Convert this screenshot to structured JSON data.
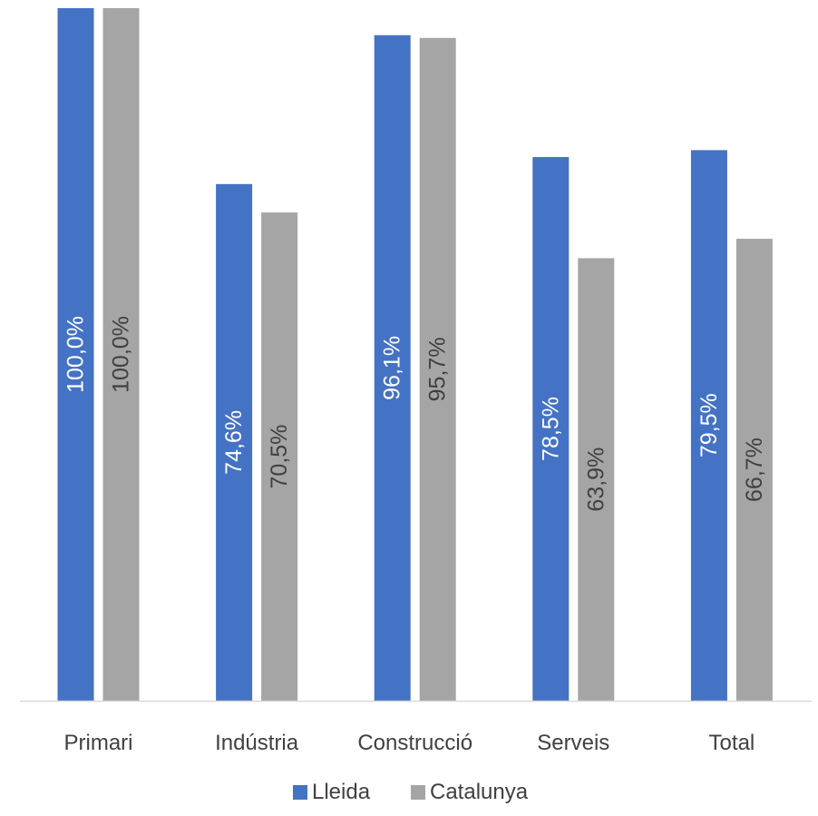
{
  "chart_data": {
    "type": "bar",
    "categories": [
      "Primari",
      "Indústria",
      "Construcció",
      "Serveis",
      "Total"
    ],
    "series": [
      {
        "name": "Lleida",
        "color": "#4472C4",
        "values": [
          100.0,
          74.6,
          96.1,
          78.5,
          79.5
        ],
        "labels": [
          "100,0%",
          "74,6%",
          "96,1%",
          "78,5%",
          "79,5%"
        ],
        "label_color": "#ffffff"
      },
      {
        "name": "Catalunya",
        "color": "#A5A5A5",
        "values": [
          100.0,
          70.5,
          95.7,
          63.9,
          66.7
        ],
        "labels": [
          "100,0%",
          "70,5%",
          "95,7%",
          "63,9%",
          "66,7%"
        ],
        "label_color": "#404040"
      }
    ],
    "ylim": [
      0,
      100
    ],
    "grid": false,
    "legend": "bottom",
    "data_labels": "rotated-inside-bar",
    "axis_color": "#D9D9D9",
    "text_color": "#404040"
  }
}
